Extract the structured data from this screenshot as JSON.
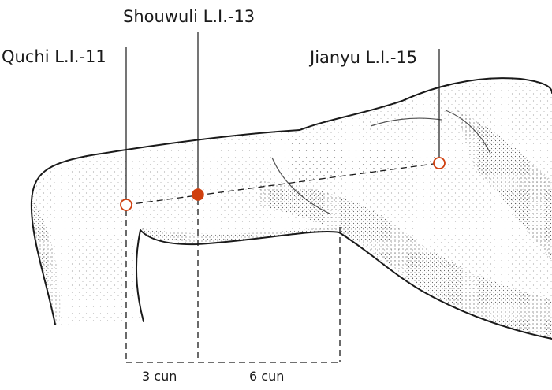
{
  "points": [
    {
      "id": "quchi",
      "label": "Quchi L.I.-11",
      "style": "open"
    },
    {
      "id": "shouwuli",
      "label": "Shouwuli L.I.-13",
      "style": "filled"
    },
    {
      "id": "jianyu",
      "label": "Jianyu L.I.-15",
      "style": "open"
    }
  ],
  "measurements": {
    "first": "3 cun",
    "second": "6 cun"
  },
  "colors": {
    "point": "#d0400f",
    "ink": "#1a1a1a",
    "skin_stipple": "#3a3a3a"
  }
}
